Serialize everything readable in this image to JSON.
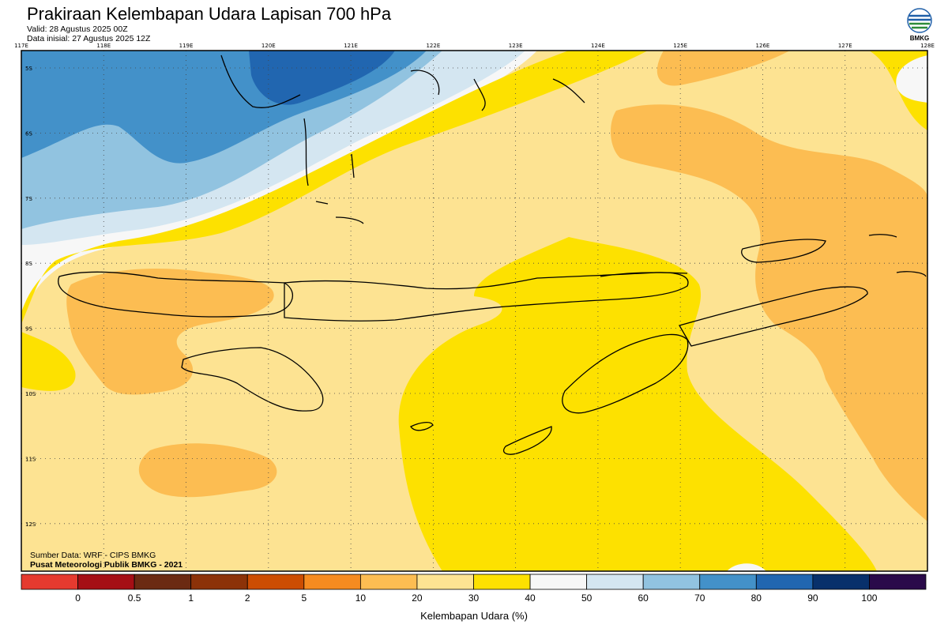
{
  "header": {
    "title": "Prakiraan Kelembapan Udara Lapisan 700 hPa",
    "valid": "Valid: 28 Agustus 2025 00Z",
    "init": "Data inisial: 27 Agustus 2025 12Z"
  },
  "logo": {
    "icon": "bmkg-logo-icon",
    "text": "BMKG"
  },
  "map": {
    "lon_ticks": [
      "117E",
      "118E",
      "119E",
      "120E",
      "121E",
      "122E",
      "123E",
      "124E",
      "125E",
      "126E",
      "127E",
      "128E"
    ],
    "lat_ticks": [
      "5S",
      "6S",
      "7S",
      "8S",
      "9S",
      "10S",
      "11S",
      "12S"
    ]
  },
  "credits": {
    "source": "Sumber Data: WRF - CIPS BMKG",
    "publisher": "Pusat Meteorologi Publik BMKG - 2021"
  },
  "colorbar": {
    "labels": [
      "0",
      "0.5",
      "1",
      "2",
      "5",
      "10",
      "20",
      "30",
      "40",
      "50",
      "60",
      "70",
      "80",
      "90",
      "100"
    ],
    "colors": [
      "#e53a2f",
      "#a50f15",
      "#6b2a12",
      "#8c3208",
      "#cc4d02",
      "#f68b20",
      "#fcbd52",
      "#fde392",
      "#fde100",
      "#f7f7f7",
      "#d4e6f1",
      "#91c3e0",
      "#4391c9",
      "#2166b0",
      "#08306b",
      "#2a0a4a"
    ],
    "title": "Kelembapan Udara (%)"
  }
}
